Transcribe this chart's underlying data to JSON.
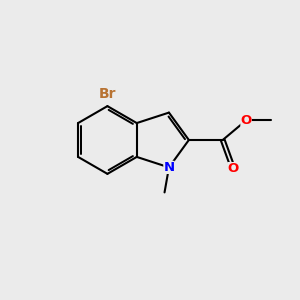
{
  "background_color": "#ebebeb",
  "bond_color": "#000000",
  "bond_width": 1.5,
  "atom_colors": {
    "Br": "#b87333",
    "N": "#0000ff",
    "O": "#ff0000",
    "C": "#000000"
  },
  "font_size_br": 10,
  "font_size_atom": 9.5,
  "fig_size": [
    3.0,
    3.0
  ],
  "dpi": 100,
  "xlim": [
    0,
    10
  ],
  "ylim": [
    0,
    10
  ]
}
